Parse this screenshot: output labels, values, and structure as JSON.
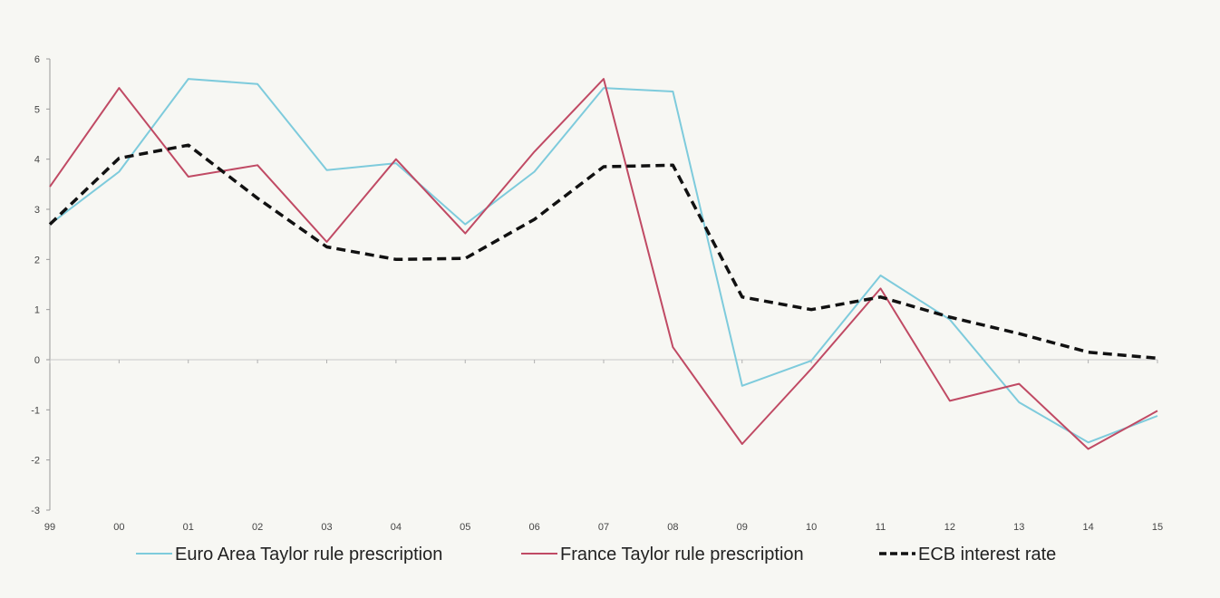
{
  "chart_data": {
    "type": "line",
    "title": "",
    "xlabel": "",
    "ylabel": "",
    "categories": [
      "99",
      "00",
      "01",
      "02",
      "03",
      "04",
      "05",
      "06",
      "07",
      "08",
      "09",
      "10",
      "11",
      "12",
      "13",
      "14",
      "15"
    ],
    "yticks": [
      "6",
      "5",
      "4",
      "3",
      "2",
      "1",
      "0",
      "-1",
      "-2",
      "-3"
    ],
    "ylim": [
      -3,
      6
    ],
    "grid": false,
    "legend_position": "bottom",
    "series": [
      {
        "name": "Euro Area Taylor rule prescription",
        "color": "#7ecbdc",
        "style": "solid",
        "values": [
          2.7,
          3.75,
          5.6,
          5.5,
          3.78,
          3.92,
          2.7,
          3.75,
          5.42,
          5.35,
          -0.52,
          -0.02,
          1.68,
          0.8,
          -0.85,
          -1.65,
          -1.12
        ]
      },
      {
        "name": "France Taylor rule prescription",
        "color": "#c04a64",
        "style": "solid",
        "values": [
          3.45,
          5.42,
          3.65,
          3.88,
          2.35,
          4.0,
          2.52,
          4.15,
          5.6,
          0.25,
          -1.68,
          -0.18,
          1.42,
          -0.82,
          -0.48,
          -1.78,
          -1.02
        ]
      },
      {
        "name": "ECB interest rate",
        "color": "#111111",
        "style": "dashed",
        "values": [
          2.7,
          4.02,
          4.28,
          3.22,
          2.25,
          2.0,
          2.02,
          2.8,
          3.85,
          3.88,
          1.25,
          1.0,
          1.25,
          0.85,
          0.52,
          0.15,
          0.03
        ]
      }
    ]
  }
}
